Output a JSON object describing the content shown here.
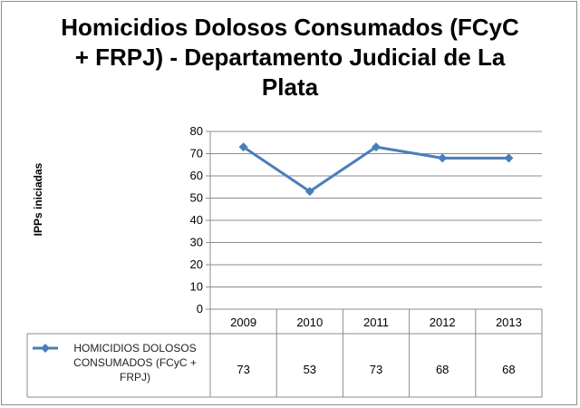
{
  "chart_data": {
    "type": "line",
    "title_lines": [
      "Homicidios Dolosos Consumados (FCyC",
      "+ FRPJ) - Departamento Judicial de La",
      "Plata"
    ],
    "xlabel": "",
    "ylabel": "IPPs iniciadas",
    "categories": [
      "2009",
      "2010",
      "2011",
      "2012",
      "2013"
    ],
    "ylim": [
      0,
      80
    ],
    "yticks": [
      "80",
      "70",
      "60",
      "50",
      "40",
      "30",
      "20",
      "10",
      "0"
    ],
    "grid": true,
    "legend": "data-table",
    "series": [
      {
        "name": "HOMICIDIOS DOLOSOS CONSUMADOS (FCyC + FRPJ)",
        "values": [
          73,
          53,
          73,
          68,
          68
        ],
        "value_labels": [
          "73",
          "53",
          "73",
          "68",
          "68"
        ],
        "color": "#4a7ebb"
      }
    ]
  },
  "legend_label_lines": [
    "HOMICIDIOS DOLOSOS",
    "CONSUMADOS (FCyC +",
    "FRPJ)"
  ]
}
